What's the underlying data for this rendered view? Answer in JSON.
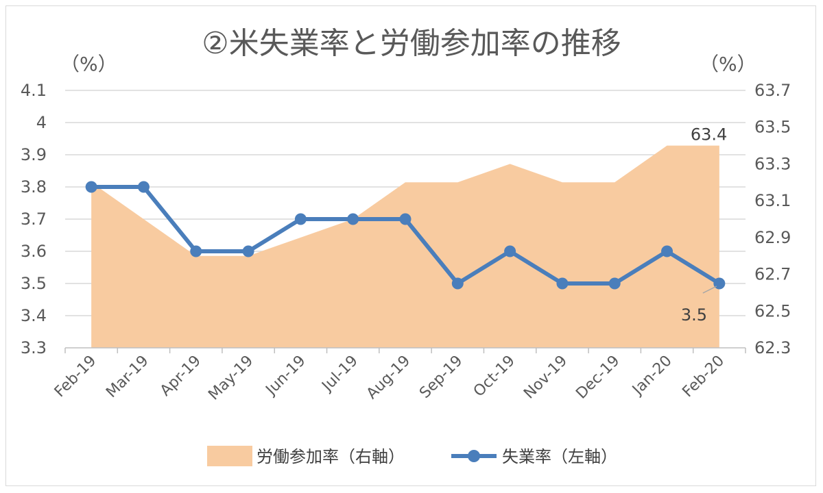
{
  "chart_data": {
    "type": "line",
    "title": "②米失業率と労働参加率の推移",
    "categories": [
      "Feb-19",
      "Mar-19",
      "Apr-19",
      "May-19",
      "Jun-19",
      "Jul-19",
      "Aug-19",
      "Sep-19",
      "Oct-19",
      "Nov-19",
      "Dec-19",
      "Jan-20",
      "Feb-20"
    ],
    "y_left": {
      "unit": "（%）",
      "ylim": [
        3.3,
        4.1
      ],
      "ticks": [
        "3.3",
        "3.4",
        "3.5",
        "3.6",
        "3.7",
        "3.8",
        "3.9",
        "4",
        "4.1"
      ]
    },
    "y_right": {
      "unit": "（%）",
      "ylim": [
        62.3,
        63.7
      ],
      "ticks": [
        "62.3",
        "62.5",
        "62.7",
        "62.9",
        "63.1",
        "63.3",
        "63.5",
        "63.7"
      ]
    },
    "series": [
      {
        "name": "労働参加率（右軸）",
        "type": "area",
        "axis": "right",
        "color": "#F8CBA0",
        "values": [
          63.2,
          63.0,
          62.8,
          62.8,
          62.9,
          63.0,
          63.2,
          63.2,
          63.3,
          63.2,
          63.2,
          63.4,
          63.4
        ],
        "end_label": "63.4"
      },
      {
        "name": "失業率（左軸）",
        "type": "line",
        "axis": "left",
        "color": "#4A7EBB",
        "values": [
          3.8,
          3.8,
          3.6,
          3.6,
          3.7,
          3.7,
          3.7,
          3.5,
          3.6,
          3.5,
          3.5,
          3.6,
          3.5
        ],
        "end_label": "3.5"
      }
    ],
    "grid": true,
    "legend_position": "bottom"
  }
}
